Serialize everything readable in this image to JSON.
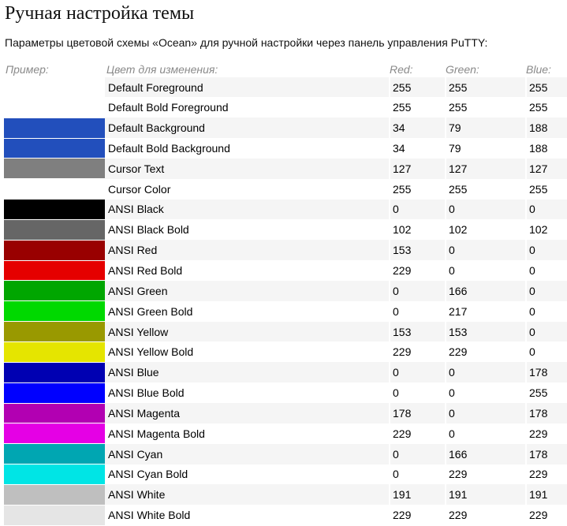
{
  "page": {
    "title": "Ручная настройка темы",
    "description": "Параметры цветовой схемы «Ocean» для ручной настройки через панель управления PuTTY:"
  },
  "table": {
    "headers": {
      "sample": "Пример:",
      "color": "Цвет для изменения:",
      "red": "Red:",
      "green": "Green:",
      "blue": "Blue:"
    },
    "rows": [
      {
        "name": "Default Foreground",
        "r": "255",
        "g": "255",
        "b": "255",
        "swatch": "#ffffff"
      },
      {
        "name": "Default Bold Foreground",
        "r": "255",
        "g": "255",
        "b": "255",
        "swatch": "#ffffff"
      },
      {
        "name": "Default Background",
        "r": "34",
        "g": "79",
        "b": "188",
        "swatch": "#224fbc"
      },
      {
        "name": "Default Bold Background",
        "r": "34",
        "g": "79",
        "b": "188",
        "swatch": "#224fbc"
      },
      {
        "name": "Cursor Text",
        "r": "127",
        "g": "127",
        "b": "127",
        "swatch": "#7f7f7f"
      },
      {
        "name": "Cursor Color",
        "r": "255",
        "g": "255",
        "b": "255",
        "swatch": "#ffffff"
      },
      {
        "name": "ANSI Black",
        "r": "0",
        "g": "0",
        "b": "0",
        "swatch": "#000000"
      },
      {
        "name": "ANSI Black Bold",
        "r": "102",
        "g": "102",
        "b": "102",
        "swatch": "#666666"
      },
      {
        "name": "ANSI Red",
        "r": "153",
        "g": "0",
        "b": "0",
        "swatch": "#990000"
      },
      {
        "name": "ANSI Red Bold",
        "r": "229",
        "g": "0",
        "b": "0",
        "swatch": "#e50000"
      },
      {
        "name": "ANSI Green",
        "r": "0",
        "g": "166",
        "b": "0",
        "swatch": "#00a600"
      },
      {
        "name": "ANSI Green Bold",
        "r": "0",
        "g": "217",
        "b": "0",
        "swatch": "#00d900"
      },
      {
        "name": "ANSI Yellow",
        "r": "153",
        "g": "153",
        "b": "0",
        "swatch": "#999900"
      },
      {
        "name": "ANSI Yellow Bold",
        "r": "229",
        "g": "229",
        "b": "0",
        "swatch": "#e5e500"
      },
      {
        "name": "ANSI Blue",
        "r": "0",
        "g": "0",
        "b": "178",
        "swatch": "#0000b2"
      },
      {
        "name": "ANSI Blue Bold",
        "r": "0",
        "g": "0",
        "b": "255",
        "swatch": "#0000ff"
      },
      {
        "name": "ANSI Magenta",
        "r": "178",
        "g": "0",
        "b": "178",
        "swatch": "#b200b2"
      },
      {
        "name": "ANSI Magenta Bold",
        "r": "229",
        "g": "0",
        "b": "229",
        "swatch": "#e500e5"
      },
      {
        "name": "ANSI Cyan",
        "r": "0",
        "g": "166",
        "b": "178",
        "swatch": "#00a6b2"
      },
      {
        "name": "ANSI Cyan Bold",
        "r": "0",
        "g": "229",
        "b": "229",
        "swatch": "#00e5e5"
      },
      {
        "name": "ANSI White",
        "r": "191",
        "g": "191",
        "b": "191",
        "swatch": "#bfbfbf"
      },
      {
        "name": "ANSI White Bold",
        "r": "229",
        "g": "229",
        "b": "229",
        "swatch": "#e5e5e5"
      }
    ]
  }
}
